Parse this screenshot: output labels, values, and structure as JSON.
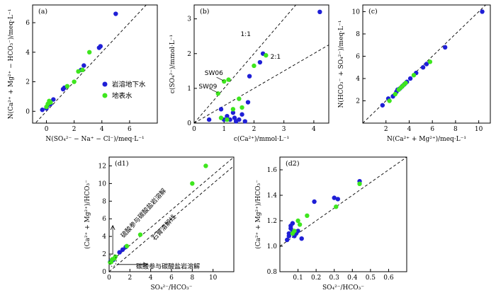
{
  "colors": {
    "groundwater": "#1f1fd6",
    "surface": "#3ee61e"
  },
  "legend": {
    "items": [
      {
        "label": "岩溶地下水",
        "color": "#1f1fd6"
      },
      {
        "label": "地表水",
        "color": "#3ee61e"
      }
    ]
  },
  "chart_data": [
    {
      "panel_label": "(a)",
      "type": "scatter",
      "xlabel": "N(SO₄²⁻ − Na⁺ − Cl⁻)/meq·L⁻¹",
      "ylabel": "N(Ca²⁺ + Mg²⁺ − HCO₃⁻)/meq·L⁻¹",
      "xlim": [
        -1,
        8
      ],
      "ylim": [
        -0.8,
        7.2
      ],
      "xticks": [
        0,
        2,
        4,
        6
      ],
      "yticks": [
        0,
        2,
        4,
        6
      ],
      "reference_lines": [
        {
          "points": [
            [
              -1,
              -1
            ],
            [
              8,
              8
            ]
          ]
        }
      ],
      "annotations": [],
      "series": [
        {
          "name": "岩溶地下水",
          "color": "#1f1fd6",
          "points": [
            [
              -0.3,
              0.1
            ],
            [
              0.0,
              0.2
            ],
            [
              0.1,
              0.4
            ],
            [
              0.2,
              0.6
            ],
            [
              0.3,
              0.5
            ],
            [
              0.5,
              0.8
            ],
            [
              1.2,
              1.5
            ],
            [
              1.3,
              1.6
            ],
            [
              2.5,
              2.8
            ],
            [
              2.7,
              3.1
            ],
            [
              3.8,
              4.3
            ],
            [
              3.9,
              4.4
            ],
            [
              5.0,
              6.6
            ]
          ]
        },
        {
          "name": "地表水",
          "color": "#3ee61e",
          "points": [
            [
              0.0,
              0.3
            ],
            [
              0.1,
              0.5
            ],
            [
              0.2,
              0.7
            ],
            [
              0.3,
              0.6
            ],
            [
              1.5,
              1.7
            ],
            [
              2.0,
              2.0
            ],
            [
              2.3,
              2.7
            ],
            [
              2.6,
              2.8
            ],
            [
              3.1,
              4.0
            ]
          ]
        }
      ]
    },
    {
      "panel_label": "(b)",
      "type": "scatter",
      "xlabel": "c(Ca²⁺)/mmol·L⁻¹",
      "ylabel": "c(SO₄²⁻)/mmol·L⁻¹",
      "xlim": [
        0,
        4.5
      ],
      "ylim": [
        0,
        3.4
      ],
      "xticks": [
        0,
        1,
        2,
        3,
        4
      ],
      "yticks": [
        0,
        1,
        2,
        3
      ],
      "reference_lines": [
        {
          "points": [
            [
              0,
              0
            ],
            [
              3.4,
              3.4
            ]
          ]
        },
        {
          "points": [
            [
              0,
              0
            ],
            [
              4.5,
              2.25
            ]
          ]
        }
      ],
      "annotations": [
        {
          "text": "1:1",
          "x": 1.55,
          "y": 2.5
        },
        {
          "text": "2:1",
          "x": 2.55,
          "y": 1.85
        },
        {
          "text": "SW06",
          "x": 0.35,
          "y": 1.38
        },
        {
          "text": "SW09",
          "x": 0.15,
          "y": 1.0
        }
      ],
      "series": [
        {
          "name": "岩溶地下水",
          "color": "#1f1fd6",
          "points": [
            [
              0.5,
              0.1
            ],
            [
              0.9,
              0.4
            ],
            [
              1.0,
              0.1
            ],
            [
              1.1,
              0.2
            ],
            [
              1.2,
              0.1
            ],
            [
              1.3,
              0.3
            ],
            [
              1.35,
              0.15
            ],
            [
              1.4,
              0.05
            ],
            [
              1.5,
              0.1
            ],
            [
              1.6,
              0.25
            ],
            [
              1.7,
              0.05
            ],
            [
              1.8,
              0.6
            ],
            [
              1.85,
              1.35
            ],
            [
              2.2,
              1.75
            ],
            [
              2.3,
              2.0
            ],
            [
              4.2,
              3.2
            ]
          ]
        },
        {
          "name": "地表水",
          "color": "#3ee61e",
          "points": [
            [
              0.8,
              0.85
            ],
            [
              0.9,
              0.15
            ],
            [
              1.0,
              1.2
            ],
            [
              1.1,
              0.1
            ],
            [
              1.15,
              1.25
            ],
            [
              1.3,
              0.4
            ],
            [
              1.5,
              0.7
            ],
            [
              1.6,
              0.45
            ],
            [
              2.0,
              1.65
            ],
            [
              2.4,
              1.95
            ]
          ]
        }
      ]
    },
    {
      "panel_label": "(c)",
      "type": "scatter",
      "xlabel": "N(Ca²⁺ + Mg²⁺)/meq·L⁻¹",
      "ylabel": "N(HCO₃⁻ + SO₄²⁻)/meq·L⁻¹",
      "xlim": [
        0,
        11
      ],
      "ylim": [
        0,
        10.6
      ],
      "xticks": [
        2,
        4,
        6,
        8,
        10
      ],
      "yticks": [
        2,
        4,
        6,
        8,
        10
      ],
      "reference_lines": [
        {
          "points": [
            [
              0,
              0
            ],
            [
              10.6,
              10.6
            ]
          ]
        }
      ],
      "annotations": [],
      "series": [
        {
          "name": "岩溶地下水",
          "color": "#1f1fd6",
          "points": [
            [
              1.7,
              1.6
            ],
            [
              2.2,
              2.2
            ],
            [
              2.6,
              2.4
            ],
            [
              2.9,
              2.8
            ],
            [
              3.0,
              3.0
            ],
            [
              3.2,
              3.1
            ],
            [
              3.4,
              3.3
            ],
            [
              3.6,
              3.5
            ],
            [
              3.8,
              3.7
            ],
            [
              4.1,
              4.0
            ],
            [
              4.6,
              4.5
            ],
            [
              5.2,
              5.0
            ],
            [
              5.5,
              5.3
            ],
            [
              7.1,
              6.8
            ],
            [
              10.3,
              10.0
            ]
          ]
        },
        {
          "name": "地表水",
          "color": "#3ee61e",
          "points": [
            [
              2.3,
              2.0
            ],
            [
              2.8,
              2.6
            ],
            [
              3.1,
              3.0
            ],
            [
              3.3,
              3.2
            ],
            [
              3.5,
              3.4
            ],
            [
              3.7,
              3.6
            ],
            [
              4.4,
              4.3
            ],
            [
              5.8,
              5.5
            ]
          ]
        }
      ]
    },
    {
      "panel_label": "(d1)",
      "type": "scatter",
      "xlabel": "SO₄²⁻/HCO₃⁻",
      "ylabel": "(Ca²⁺ + Mg²⁺)/HCO₃⁻",
      "xlim": [
        0,
        12
      ],
      "ylim": [
        0,
        13
      ],
      "xticks": [
        0,
        2,
        4,
        6,
        8,
        10
      ],
      "yticks": [
        0,
        2,
        4,
        6,
        8,
        10,
        12
      ],
      "reference_lines": [
        {
          "points": [
            [
              0,
              1
            ],
            [
              12,
              13
            ]
          ]
        },
        {
          "points": [
            [
              0,
              0
            ],
            [
              12,
              12
            ]
          ]
        }
      ],
      "annotations": [
        {
          "text": "硫酸参与碳酸盐岩溶解",
          "x": 1.4,
          "y": 3.8,
          "rotation": -48
        },
        {
          "text": "石膏溶解线",
          "x": 4.4,
          "y": 3.5,
          "rotation": -48
        },
        {
          "text": "碳酸参与碳酸盐岩溶解",
          "x": 2.6,
          "y": 0.35
        }
      ],
      "series": [
        {
          "name": "岩溶地下水",
          "color": "#1f1fd6",
          "points": [
            [
              0.1,
              1.1
            ],
            [
              0.15,
              1.15
            ],
            [
              0.2,
              1.2
            ],
            [
              0.3,
              1.3
            ],
            [
              0.4,
              1.35
            ],
            [
              1.0,
              2.2
            ],
            [
              1.3,
              2.5
            ],
            [
              1.6,
              2.8
            ]
          ]
        },
        {
          "name": "地表水",
          "color": "#3ee61e",
          "points": [
            [
              0.1,
              1.05
            ],
            [
              0.2,
              1.1
            ],
            [
              0.3,
              1.4
            ],
            [
              0.5,
              1.5
            ],
            [
              0.6,
              1.7
            ],
            [
              1.7,
              2.9
            ],
            [
              3.0,
              4.2
            ],
            [
              8.0,
              10.0
            ],
            [
              9.3,
              12.0
            ]
          ]
        }
      ]
    },
    {
      "panel_label": "(d2)",
      "type": "scatter",
      "xlabel": "SO₄²⁻/HCO₃⁻",
      "ylabel": "(Ca²⁺ + Mg²⁺)/HCO₃⁻",
      "xlim": [
        0,
        0.7
      ],
      "ylim": [
        0.8,
        1.7
      ],
      "xticks": [
        0.1,
        0.2,
        0.3,
        0.4,
        0.5,
        0.6
      ],
      "yticks": [
        0.8,
        1.0,
        1.2,
        1.4,
        1.6
      ],
      "reference_lines": [
        {
          "points": [
            [
              0,
              1.0
            ],
            [
              0.7,
              1.7
            ]
          ]
        }
      ],
      "annotations": [],
      "series": [
        {
          "name": "岩溶地下水",
          "color": "#1f1fd6",
          "points": [
            [
              0.04,
              1.05
            ],
            [
              0.05,
              1.08
            ],
            [
              0.05,
              1.1
            ],
            [
              0.06,
              1.14
            ],
            [
              0.06,
              1.16
            ],
            [
              0.07,
              1.18
            ],
            [
              0.07,
              1.12
            ],
            [
              0.08,
              1.08
            ],
            [
              0.09,
              1.1
            ],
            [
              0.1,
              1.12
            ],
            [
              0.12,
              1.06
            ],
            [
              0.19,
              1.35
            ],
            [
              0.3,
              1.38
            ],
            [
              0.32,
              1.37
            ],
            [
              0.44,
              1.51
            ]
          ]
        },
        {
          "name": "地表水",
          "color": "#3ee61e",
          "points": [
            [
              0.07,
              1.1
            ],
            [
              0.08,
              1.12
            ],
            [
              0.1,
              1.2
            ],
            [
              0.11,
              1.17
            ],
            [
              0.15,
              1.24
            ],
            [
              0.31,
              1.31
            ],
            [
              0.44,
              1.49
            ]
          ]
        }
      ]
    }
  ]
}
